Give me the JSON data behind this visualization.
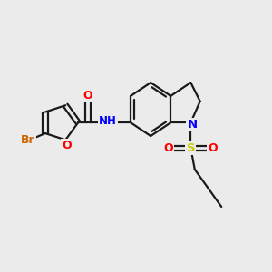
{
  "background_color": "#ebebeb",
  "bond_color": "#1a1a1a",
  "bond_width": 1.6,
  "atom_colors": {
    "O": "#ff0000",
    "N": "#0000ff",
    "S": "#cccc00",
    "Br": "#cc6600",
    "C": "#1a1a1a",
    "H": "#1a1a1a"
  },
  "font_size": 8.5
}
